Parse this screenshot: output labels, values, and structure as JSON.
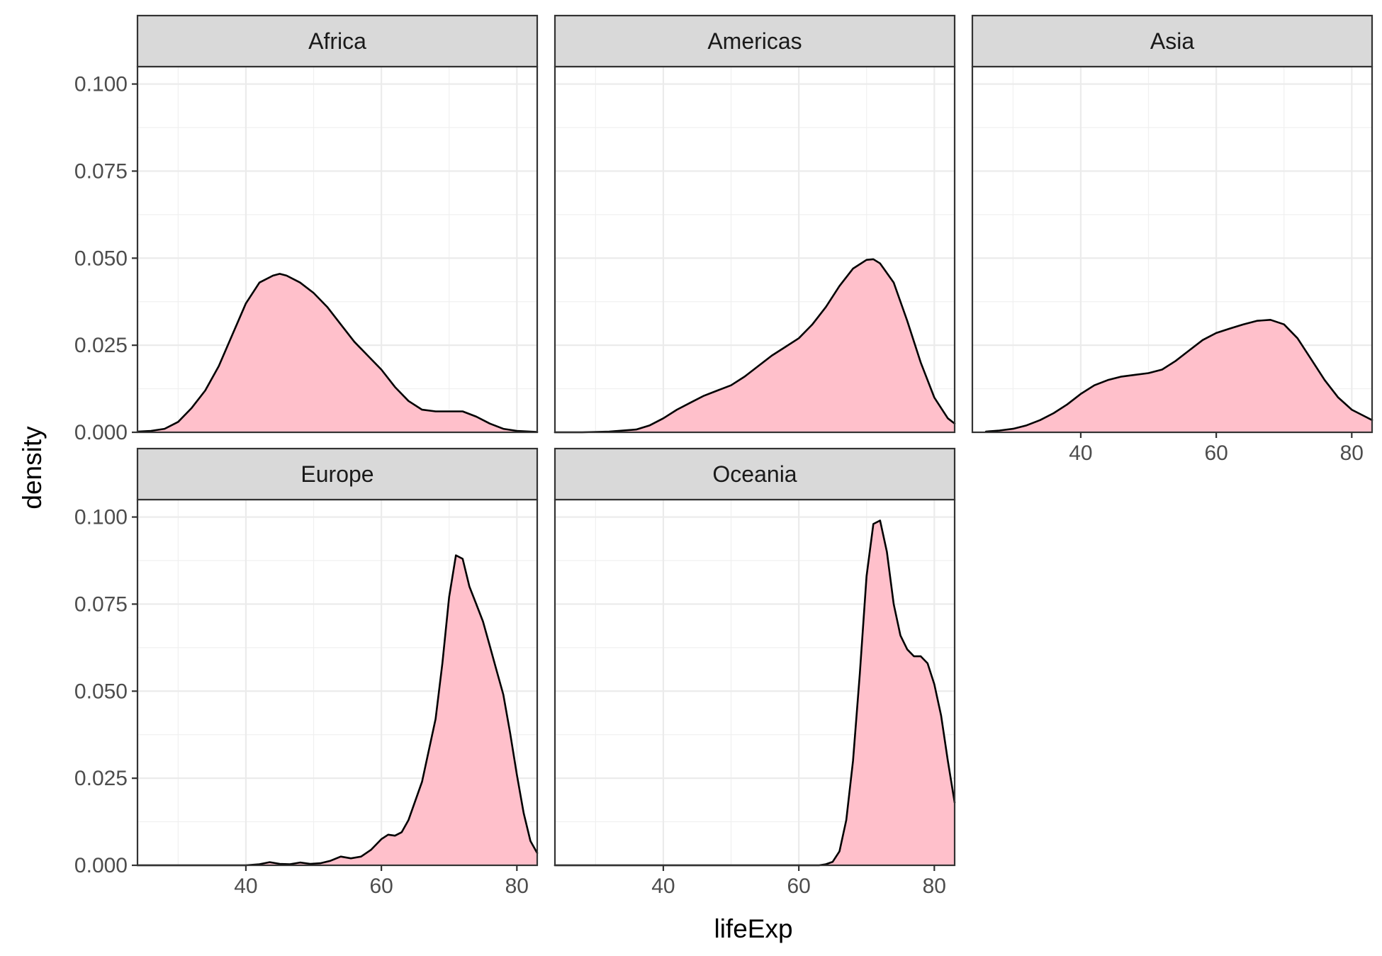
{
  "chart_data": {
    "type": "area",
    "facet_layout": "wrap",
    "xlabel": "lifeExp",
    "ylabel": "density",
    "xlim": [
      24,
      83
    ],
    "ylim": [
      0,
      0.105
    ],
    "x_ticks": [
      40,
      60,
      80
    ],
    "y_ticks": [
      0,
      0.025,
      0.05,
      0.075,
      0.1
    ],
    "y_tick_labels": [
      "0.000",
      "0.025",
      "0.050",
      "0.075",
      "0.100"
    ],
    "grid": true,
    "fill_color": "#FFC0CB",
    "line_color": "#000000",
    "strip_fill": "#D9D9D9",
    "panels": [
      {
        "name": "Africa",
        "x": [
          24,
          26,
          28,
          30,
          32,
          34,
          36,
          38,
          40,
          42,
          44,
          45,
          46,
          48,
          50,
          52,
          54,
          56,
          58,
          60,
          62,
          64,
          66,
          68,
          70,
          72,
          74,
          76,
          78,
          80,
          82,
          83
        ],
        "y": [
          0.0002,
          0.0004,
          0.001,
          0.003,
          0.007,
          0.012,
          0.019,
          0.028,
          0.037,
          0.043,
          0.045,
          0.0455,
          0.045,
          0.043,
          0.04,
          0.036,
          0.031,
          0.026,
          0.022,
          0.018,
          0.013,
          0.009,
          0.0065,
          0.006,
          0.006,
          0.006,
          0.0045,
          0.0025,
          0.001,
          0.0004,
          0.0002,
          0.0001
        ]
      },
      {
        "name": "Americas",
        "x": [
          24,
          28,
          32,
          36,
          38,
          40,
          42,
          44,
          46,
          48,
          50,
          52,
          54,
          56,
          58,
          60,
          62,
          64,
          66,
          68,
          70,
          71,
          72,
          74,
          76,
          78,
          80,
          82,
          83
        ],
        "y": [
          0.0,
          0.0,
          0.0002,
          0.0008,
          0.002,
          0.004,
          0.0065,
          0.0085,
          0.0105,
          0.012,
          0.0135,
          0.016,
          0.019,
          0.022,
          0.0245,
          0.027,
          0.031,
          0.036,
          0.042,
          0.047,
          0.0495,
          0.0497,
          0.0485,
          0.043,
          0.032,
          0.02,
          0.01,
          0.004,
          0.0025
        ]
      },
      {
        "name": "Asia",
        "x": [
          26,
          28,
          30,
          32,
          34,
          36,
          38,
          40,
          42,
          44,
          46,
          48,
          50,
          52,
          54,
          56,
          58,
          60,
          62,
          64,
          66,
          68,
          70,
          72,
          74,
          76,
          78,
          80,
          82,
          83
        ],
        "y": [
          0.0002,
          0.0005,
          0.001,
          0.002,
          0.0035,
          0.0055,
          0.008,
          0.011,
          0.0135,
          0.015,
          0.016,
          0.0165,
          0.017,
          0.018,
          0.0205,
          0.0235,
          0.0265,
          0.0285,
          0.0298,
          0.031,
          0.032,
          0.0323,
          0.031,
          0.027,
          0.021,
          0.015,
          0.01,
          0.0065,
          0.0045,
          0.0035
        ]
      },
      {
        "name": "Europe",
        "x": [
          24,
          30,
          36,
          40,
          42,
          43.5,
          45,
          46.5,
          48,
          49.5,
          51,
          52.5,
          54,
          55.5,
          57,
          58.5,
          60,
          61,
          62,
          63,
          64,
          66,
          68,
          69,
          70,
          71,
          72,
          73,
          74,
          75,
          76,
          77,
          78,
          79,
          80,
          81,
          82,
          83
        ],
        "y": [
          0.0,
          0.0,
          0.0,
          0.0,
          0.0003,
          0.0009,
          0.0004,
          0.0003,
          0.0008,
          0.0004,
          0.0006,
          0.0013,
          0.0025,
          0.002,
          0.0025,
          0.0045,
          0.0075,
          0.0088,
          0.0085,
          0.0095,
          0.013,
          0.024,
          0.042,
          0.058,
          0.077,
          0.089,
          0.088,
          0.08,
          0.075,
          0.07,
          0.063,
          0.056,
          0.049,
          0.038,
          0.026,
          0.015,
          0.007,
          0.0035
        ]
      },
      {
        "name": "Oceania",
        "x": [
          24,
          40,
          60,
          63,
          64,
          65,
          66,
          67,
          68,
          69,
          70,
          71,
          72,
          73,
          74,
          75,
          76,
          77,
          78,
          79,
          80,
          81,
          82,
          83
        ],
        "y": [
          0.0,
          0.0,
          0.0,
          0.0,
          0.0003,
          0.001,
          0.004,
          0.013,
          0.03,
          0.055,
          0.083,
          0.098,
          0.099,
          0.09,
          0.075,
          0.066,
          0.062,
          0.06,
          0.06,
          0.058,
          0.052,
          0.043,
          0.03,
          0.018
        ]
      }
    ]
  }
}
